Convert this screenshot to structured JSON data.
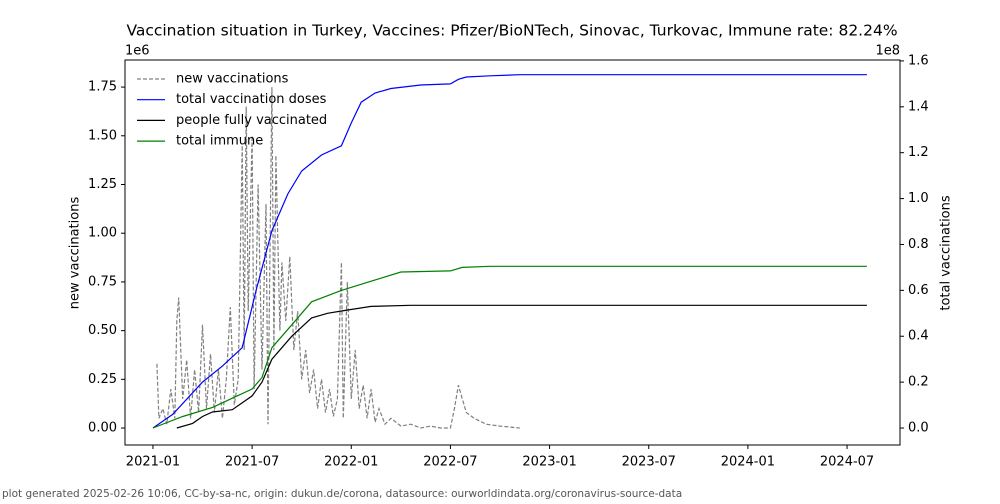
{
  "chart_data": {
    "type": "line",
    "title": "Vaccination situation in Turkey, Vaccines: Pfizer/BioNTech, Sinovac, Turkovac, Immune rate: 82.24%",
    "y_label": "new vaccinations",
    "y2_label": "total vaccinations",
    "y_offset": "1e6",
    "y2_offset": "1e8",
    "footer": "plot generated 2025-02-26 10:06, CC-by-sa-nc, origin: dukun.de/corona, datasource: ourworldindata.org/coronavirus-source-data",
    "xlim": [
      2020.859,
      2024.767
    ],
    "xticks": [
      {
        "value": 2021.0,
        "label": "2021-01"
      },
      {
        "value": 2021.5,
        "label": "2021-07"
      },
      {
        "value": 2022.0,
        "label": "2022-01"
      },
      {
        "value": 2022.5,
        "label": "2022-07"
      },
      {
        "value": 2023.0,
        "label": "2023-01"
      },
      {
        "value": 2023.5,
        "label": "2023-07"
      },
      {
        "value": 2024.0,
        "label": "2024-01"
      },
      {
        "value": 2024.5,
        "label": "2024-07"
      }
    ],
    "ylim": [
      -0.087,
      1.889
    ],
    "yticks": [
      {
        "value": 0,
        "label": "0.00"
      },
      {
        "value": 0.25,
        "label": "0.25"
      },
      {
        "value": 0.5,
        "label": "0.50"
      },
      {
        "value": 0.75,
        "label": "0.75"
      },
      {
        "value": 1,
        "label": "1.00"
      },
      {
        "value": 1.25,
        "label": "1.25"
      },
      {
        "value": 1.5,
        "label": "1.50"
      },
      {
        "value": 1.75,
        "label": "1.75"
      }
    ],
    "y2lim": [
      -0.074,
      1.604
    ],
    "y2ticks": [
      {
        "value": 0,
        "label": "0.0"
      },
      {
        "value": 0.2,
        "label": "0.2"
      },
      {
        "value": 0.4,
        "label": "0.4"
      },
      {
        "value": 0.6,
        "label": "0.6"
      },
      {
        "value": 0.8,
        "label": "0.8"
      },
      {
        "value": 1,
        "label": "1.0"
      },
      {
        "value": 1.2,
        "label": "1.2"
      },
      {
        "value": 1.4,
        "label": "1.4"
      },
      {
        "value": 1.6,
        "label": "1.6"
      }
    ],
    "legend": "upper left",
    "series": [
      {
        "name": "new vaccinations",
        "color": "#808080",
        "dashed": true,
        "axis": "y",
        "x": [
          2021.02,
          2021.03,
          2021.05,
          2021.07,
          2021.09,
          2021.11,
          2021.12,
          2021.13,
          2021.15,
          2021.17,
          2021.19,
          2021.21,
          2021.23,
          2021.25,
          2021.27,
          2021.29,
          2021.31,
          2021.33,
          2021.35,
          2021.37,
          2021.39,
          2021.41,
          2021.43,
          2021.45,
          2021.46,
          2021.47,
          2021.48,
          2021.5,
          2021.51,
          2021.53,
          2021.55,
          2021.57,
          2021.58,
          2021.6,
          2021.61,
          2021.62,
          2021.64,
          2021.65,
          2021.67,
          2021.69,
          2021.71,
          2021.73,
          2021.75,
          2021.77,
          2021.79,
          2021.81,
          2021.83,
          2021.85,
          2021.87,
          2021.89,
          2021.91,
          2021.93,
          2021.95,
          2021.96,
          2021.98,
          2022.0,
          2022.02,
          2022.04,
          2022.06,
          2022.08,
          2022.1,
          2022.12,
          2022.14,
          2022.17,
          2022.2,
          2022.25,
          2022.3,
          2022.35,
          2022.4,
          2022.45,
          2022.5,
          2022.52,
          2022.54,
          2022.56,
          2022.58,
          2022.62,
          2022.68,
          2022.75,
          2022.85
        ],
        "values": [
          0.33,
          0.05,
          0.1,
          0.02,
          0.2,
          0.05,
          0.55,
          0.67,
          0.15,
          0.35,
          0.05,
          0.3,
          0.08,
          0.53,
          0.1,
          0.38,
          0.08,
          0.3,
          0.05,
          0.25,
          0.62,
          0.12,
          0.25,
          1.45,
          0.4,
          1.65,
          0.6,
          1.5,
          0.2,
          1.25,
          0.3,
          1.15,
          0.02,
          1.75,
          0.4,
          1.4,
          0.5,
          0.85,
          0.55,
          0.88,
          0.4,
          0.6,
          0.25,
          0.4,
          0.18,
          0.3,
          0.1,
          0.25,
          0.08,
          0.2,
          0.06,
          0.15,
          0.85,
          0.05,
          0.75,
          0.15,
          0.4,
          0.1,
          0.22,
          0.05,
          0.2,
          0.03,
          0.1,
          0.02,
          0.05,
          0.01,
          0.02,
          0,
          0.01,
          0,
          0,
          0.1,
          0.22,
          0.15,
          0.08,
          0.05,
          0.02,
          0.01,
          0
        ]
      },
      {
        "name": "total vaccination doses",
        "color": "#0000ff",
        "axis": "y2",
        "x": [
          2021.0,
          2021.1,
          2021.25,
          2021.35,
          2021.45,
          2021.52,
          2021.6,
          2021.68,
          2021.75,
          2021.85,
          2021.95,
          2022.0,
          2022.05,
          2022.12,
          2022.2,
          2022.35,
          2022.5,
          2022.54,
          2022.58,
          2022.7,
          2022.85,
          2024.6
        ],
        "values": [
          0,
          0.06,
          0.2,
          0.27,
          0.35,
          0.6,
          0.86,
          1.02,
          1.12,
          1.19,
          1.23,
          1.33,
          1.42,
          1.46,
          1.48,
          1.495,
          1.5,
          1.52,
          1.53,
          1.535,
          1.54,
          1.54
        ]
      },
      {
        "name": "people fully vaccinated",
        "color": "#000000",
        "axis": "y2",
        "x": [
          2021.12,
          2021.2,
          2021.25,
          2021.3,
          2021.4,
          2021.5,
          2021.55,
          2021.6,
          2021.7,
          2021.8,
          2021.88,
          2021.95,
          2022.1,
          2022.3,
          2024.6
        ],
        "values": [
          0,
          0.02,
          0.05,
          0.07,
          0.08,
          0.14,
          0.2,
          0.3,
          0.4,
          0.48,
          0.5,
          0.51,
          0.53,
          0.535,
          0.535
        ]
      },
      {
        "name": "total immune",
        "color": "#008000",
        "axis": "y2",
        "x": [
          2021.0,
          2021.15,
          2021.3,
          2021.4,
          2021.5,
          2021.55,
          2021.6,
          2021.7,
          2021.8,
          2021.95,
          2022.1,
          2022.25,
          2022.5,
          2022.56,
          2022.7,
          2024.6
        ],
        "values": [
          0,
          0.05,
          0.09,
          0.13,
          0.17,
          0.22,
          0.35,
          0.45,
          0.55,
          0.6,
          0.64,
          0.68,
          0.685,
          0.7,
          0.705,
          0.705
        ]
      }
    ]
  }
}
